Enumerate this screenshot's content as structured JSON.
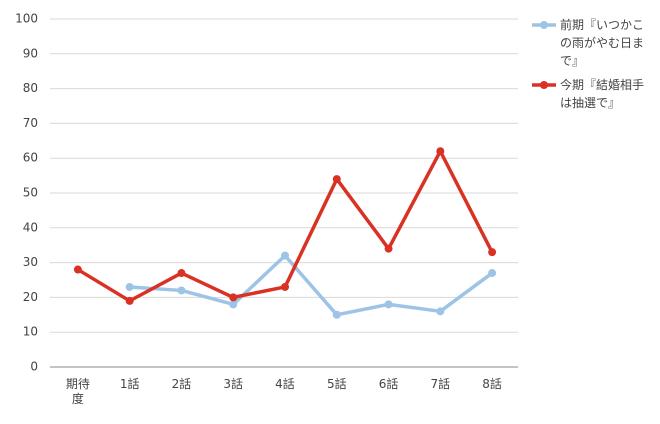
{
  "chart_data": {
    "type": "line",
    "categories": [
      "期待度",
      "1話",
      "2話",
      "3話",
      "4話",
      "5話",
      "6話",
      "7話",
      "8話"
    ],
    "series": [
      {
        "name": "前期『いつかこの雨がやむ日まで』",
        "color": "#9dc3e6",
        "values": [
          null,
          23,
          22,
          18,
          32,
          15,
          18,
          16,
          27
        ]
      },
      {
        "name": "今期『結婚相手は抽選で』",
        "color": "#d93124",
        "values": [
          28,
          19,
          27,
          20,
          23,
          54,
          34,
          62,
          33
        ]
      }
    ],
    "ylim": [
      0,
      100
    ],
    "yticks": [
      0,
      10,
      20,
      30,
      40,
      50,
      60,
      70,
      80,
      90,
      100
    ],
    "grid": true,
    "legend": "right"
  }
}
